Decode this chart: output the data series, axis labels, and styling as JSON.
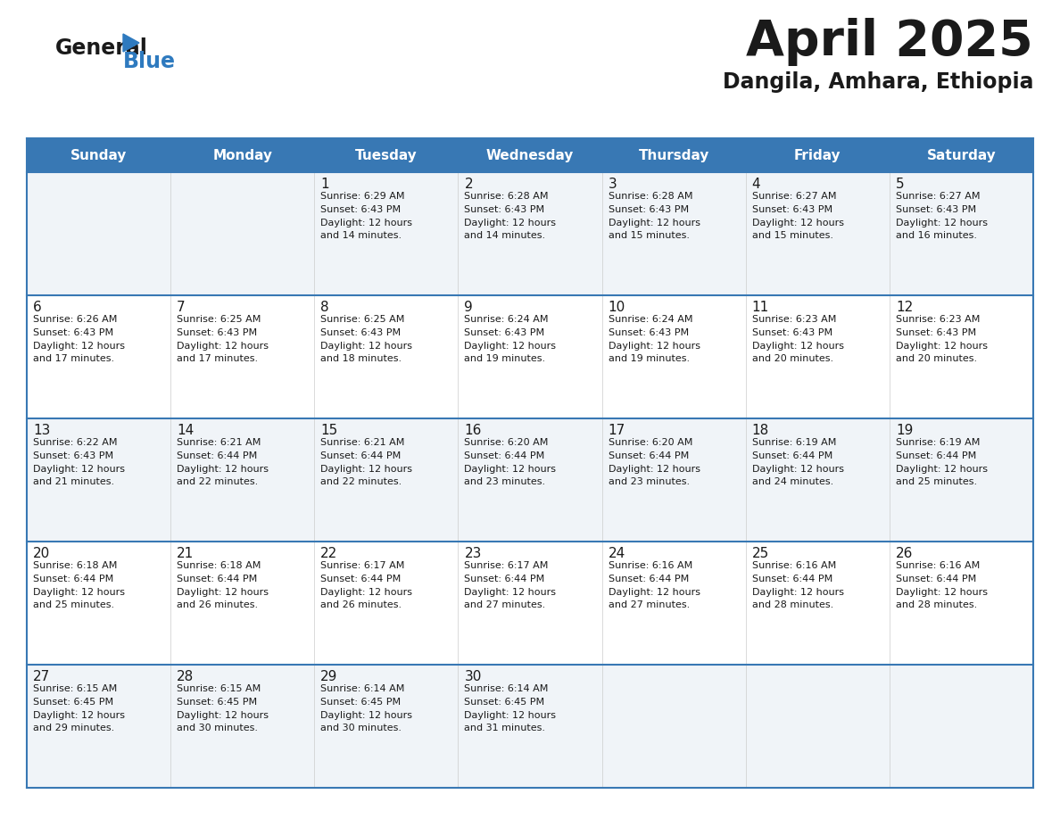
{
  "title": "April 2025",
  "subtitle": "Dangila, Amhara, Ethiopia",
  "header_bg_color": "#3878b4",
  "header_text_color": "#ffffff",
  "border_color": "#3878b4",
  "row_bg_even": "#f0f4f8",
  "row_bg_odd": "#ffffff",
  "text_color": "#1a1a1a",
  "day_names": [
    "Sunday",
    "Monday",
    "Tuesday",
    "Wednesday",
    "Thursday",
    "Friday",
    "Saturday"
  ],
  "weeks": [
    [
      {
        "day": "",
        "info": ""
      },
      {
        "day": "",
        "info": ""
      },
      {
        "day": "1",
        "info": "Sunrise: 6:29 AM\nSunset: 6:43 PM\nDaylight: 12 hours\nand 14 minutes."
      },
      {
        "day": "2",
        "info": "Sunrise: 6:28 AM\nSunset: 6:43 PM\nDaylight: 12 hours\nand 14 minutes."
      },
      {
        "day": "3",
        "info": "Sunrise: 6:28 AM\nSunset: 6:43 PM\nDaylight: 12 hours\nand 15 minutes."
      },
      {
        "day": "4",
        "info": "Sunrise: 6:27 AM\nSunset: 6:43 PM\nDaylight: 12 hours\nand 15 minutes."
      },
      {
        "day": "5",
        "info": "Sunrise: 6:27 AM\nSunset: 6:43 PM\nDaylight: 12 hours\nand 16 minutes."
      }
    ],
    [
      {
        "day": "6",
        "info": "Sunrise: 6:26 AM\nSunset: 6:43 PM\nDaylight: 12 hours\nand 17 minutes."
      },
      {
        "day": "7",
        "info": "Sunrise: 6:25 AM\nSunset: 6:43 PM\nDaylight: 12 hours\nand 17 minutes."
      },
      {
        "day": "8",
        "info": "Sunrise: 6:25 AM\nSunset: 6:43 PM\nDaylight: 12 hours\nand 18 minutes."
      },
      {
        "day": "9",
        "info": "Sunrise: 6:24 AM\nSunset: 6:43 PM\nDaylight: 12 hours\nand 19 minutes."
      },
      {
        "day": "10",
        "info": "Sunrise: 6:24 AM\nSunset: 6:43 PM\nDaylight: 12 hours\nand 19 minutes."
      },
      {
        "day": "11",
        "info": "Sunrise: 6:23 AM\nSunset: 6:43 PM\nDaylight: 12 hours\nand 20 minutes."
      },
      {
        "day": "12",
        "info": "Sunrise: 6:23 AM\nSunset: 6:43 PM\nDaylight: 12 hours\nand 20 minutes."
      }
    ],
    [
      {
        "day": "13",
        "info": "Sunrise: 6:22 AM\nSunset: 6:43 PM\nDaylight: 12 hours\nand 21 minutes."
      },
      {
        "day": "14",
        "info": "Sunrise: 6:21 AM\nSunset: 6:44 PM\nDaylight: 12 hours\nand 22 minutes."
      },
      {
        "day": "15",
        "info": "Sunrise: 6:21 AM\nSunset: 6:44 PM\nDaylight: 12 hours\nand 22 minutes."
      },
      {
        "day": "16",
        "info": "Sunrise: 6:20 AM\nSunset: 6:44 PM\nDaylight: 12 hours\nand 23 minutes."
      },
      {
        "day": "17",
        "info": "Sunrise: 6:20 AM\nSunset: 6:44 PM\nDaylight: 12 hours\nand 23 minutes."
      },
      {
        "day": "18",
        "info": "Sunrise: 6:19 AM\nSunset: 6:44 PM\nDaylight: 12 hours\nand 24 minutes."
      },
      {
        "day": "19",
        "info": "Sunrise: 6:19 AM\nSunset: 6:44 PM\nDaylight: 12 hours\nand 25 minutes."
      }
    ],
    [
      {
        "day": "20",
        "info": "Sunrise: 6:18 AM\nSunset: 6:44 PM\nDaylight: 12 hours\nand 25 minutes."
      },
      {
        "day": "21",
        "info": "Sunrise: 6:18 AM\nSunset: 6:44 PM\nDaylight: 12 hours\nand 26 minutes."
      },
      {
        "day": "22",
        "info": "Sunrise: 6:17 AM\nSunset: 6:44 PM\nDaylight: 12 hours\nand 26 minutes."
      },
      {
        "day": "23",
        "info": "Sunrise: 6:17 AM\nSunset: 6:44 PM\nDaylight: 12 hours\nand 27 minutes."
      },
      {
        "day": "24",
        "info": "Sunrise: 6:16 AM\nSunset: 6:44 PM\nDaylight: 12 hours\nand 27 minutes."
      },
      {
        "day": "25",
        "info": "Sunrise: 6:16 AM\nSunset: 6:44 PM\nDaylight: 12 hours\nand 28 minutes."
      },
      {
        "day": "26",
        "info": "Sunrise: 6:16 AM\nSunset: 6:44 PM\nDaylight: 12 hours\nand 28 minutes."
      }
    ],
    [
      {
        "day": "27",
        "info": "Sunrise: 6:15 AM\nSunset: 6:45 PM\nDaylight: 12 hours\nand 29 minutes."
      },
      {
        "day": "28",
        "info": "Sunrise: 6:15 AM\nSunset: 6:45 PM\nDaylight: 12 hours\nand 30 minutes."
      },
      {
        "day": "29",
        "info": "Sunrise: 6:14 AM\nSunset: 6:45 PM\nDaylight: 12 hours\nand 30 minutes."
      },
      {
        "day": "30",
        "info": "Sunrise: 6:14 AM\nSunset: 6:45 PM\nDaylight: 12 hours\nand 31 minutes."
      },
      {
        "day": "",
        "info": ""
      },
      {
        "day": "",
        "info": ""
      },
      {
        "day": "",
        "info": ""
      }
    ]
  ],
  "logo_color_general": "#1a1a1a",
  "logo_color_blue": "#2e7abf",
  "logo_triangle_color": "#2e7abf",
  "fig_width": 11.88,
  "fig_height": 9.18,
  "dpi": 100
}
